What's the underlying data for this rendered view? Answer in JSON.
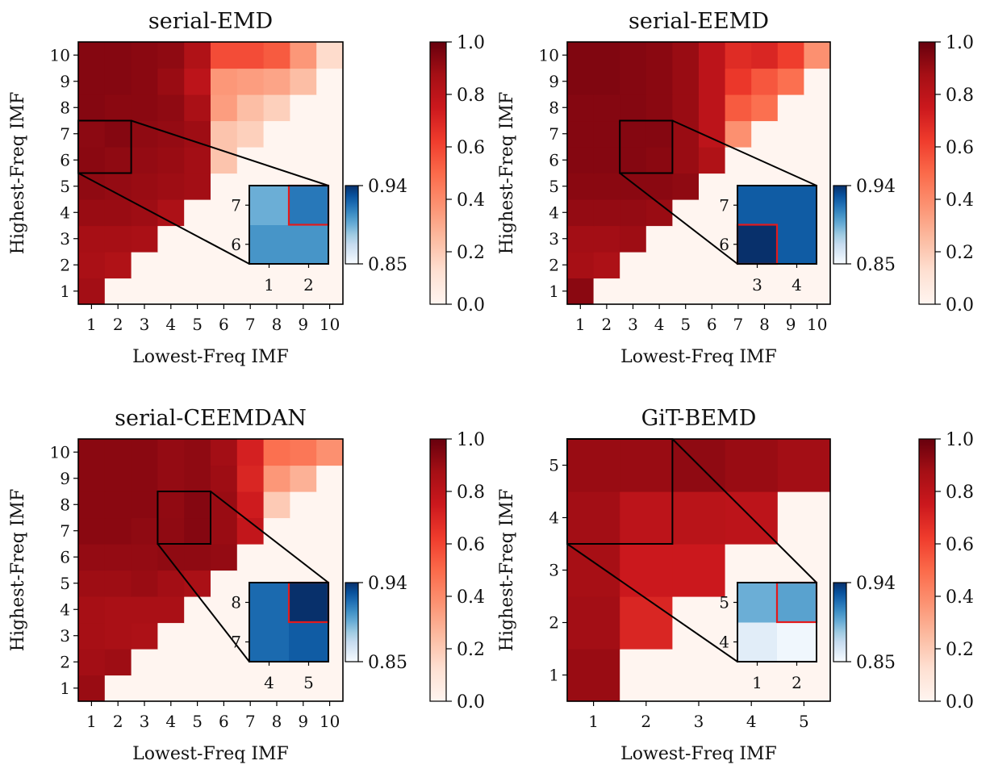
{
  "chart_data": [
    {
      "type": "heatmap",
      "title": "serial-EMD",
      "xlabel": "Lowest-Freq IMF",
      "ylabel": "Highest-Freq IMF",
      "x": [
        1,
        2,
        3,
        4,
        5,
        6,
        7,
        8,
        9,
        10
      ],
      "y": [
        1,
        2,
        3,
        4,
        5,
        6,
        7,
        8,
        9,
        10
      ],
      "values": [
        [
          0.88,
          0,
          0,
          0,
          0,
          0,
          0,
          0,
          0,
          0
        ],
        [
          0.86,
          0.84,
          0,
          0,
          0,
          0,
          0,
          0,
          0,
          0
        ],
        [
          0.87,
          0.87,
          0.86,
          0,
          0,
          0,
          0,
          0,
          0,
          0
        ],
        [
          0.9,
          0.9,
          0.89,
          0.85,
          0,
          0,
          0,
          0,
          0,
          0
        ],
        [
          0.92,
          0.91,
          0.9,
          0.89,
          0.88,
          0,
          0,
          0,
          0,
          0
        ],
        [
          0.93,
          0.92,
          0.91,
          0.9,
          0.88,
          0.22,
          0,
          0,
          0,
          0
        ],
        [
          0.925,
          0.94,
          0.92,
          0.91,
          0.89,
          0.22,
          0.18,
          0,
          0,
          0
        ],
        [
          0.94,
          0.93,
          0.93,
          0.92,
          0.86,
          0.34,
          0.24,
          0.18,
          0,
          0
        ],
        [
          0.94,
          0.94,
          0.93,
          0.9,
          0.8,
          0.36,
          0.34,
          0.32,
          0.24,
          0
        ],
        [
          0.94,
          0.94,
          0.93,
          0.92,
          0.84,
          0.58,
          0.58,
          0.54,
          0.36,
          0.14
        ]
      ],
      "colorbar": {
        "range": [
          0,
          1
        ],
        "ticks": [
          "0.0",
          "0.2",
          "0.4",
          "0.6",
          "0.8",
          "1.0"
        ],
        "colormap": "Reds"
      },
      "inset": {
        "x": [
          1,
          2
        ],
        "y": [
          6,
          7
        ],
        "values": [
          [
            0.905,
            0.905
          ],
          [
            0.895,
            0.915
          ]
        ],
        "highlight": {
          "x": 2,
          "y": 7
        },
        "colorbar": {
          "range": [
            0.85,
            0.94
          ],
          "ticks": [
            "0.85",
            "0.94"
          ],
          "colormap": "Blues"
        }
      }
    },
    {
      "type": "heatmap",
      "title": "serial-EEMD",
      "xlabel": "Lowest-Freq IMF",
      "ylabel": "Highest-Freq IMF",
      "x": [
        1,
        2,
        3,
        4,
        5,
        6,
        7,
        8,
        9,
        10
      ],
      "y": [
        1,
        2,
        3,
        4,
        5,
        6,
        7,
        8,
        9,
        10
      ],
      "values": [
        [
          0.93,
          0,
          0,
          0,
          0,
          0,
          0,
          0,
          0,
          0
        ],
        [
          0.87,
          0.85,
          0,
          0,
          0,
          0,
          0,
          0,
          0,
          0
        ],
        [
          0.88,
          0.88,
          0.89,
          0,
          0,
          0,
          0,
          0,
          0,
          0
        ],
        [
          0.91,
          0.91,
          0.91,
          0.9,
          0,
          0,
          0,
          0,
          0,
          0
        ],
        [
          0.93,
          0.93,
          0.93,
          0.93,
          0.92,
          0,
          0,
          0,
          0,
          0
        ],
        [
          0.94,
          0.94,
          0.94,
          0.93,
          0.9,
          0.84,
          0,
          0,
          0,
          0
        ],
        [
          0.94,
          0.94,
          0.94,
          0.94,
          0.9,
          0.8,
          0.38,
          0,
          0,
          0
        ],
        [
          0.94,
          0.94,
          0.94,
          0.93,
          0.9,
          0.8,
          0.54,
          0.48,
          0,
          0
        ],
        [
          0.95,
          0.95,
          0.94,
          0.93,
          0.9,
          0.8,
          0.64,
          0.55,
          0.48,
          0
        ],
        [
          0.95,
          0.95,
          0.94,
          0.93,
          0.9,
          0.8,
          0.68,
          0.7,
          0.62,
          0.38
        ]
      ],
      "colorbar": {
        "range": [
          0,
          1
        ],
        "ticks": [
          "0.0",
          "0.2",
          "0.4",
          "0.6",
          "0.8",
          "1.0"
        ],
        "colormap": "Reds"
      },
      "inset": {
        "x": [
          3,
          4
        ],
        "y": [
          6,
          7
        ],
        "values": [
          [
            0.94,
            0.925
          ],
          [
            0.925,
            0.925
          ]
        ],
        "highlight": {
          "x": 3,
          "y": 6
        },
        "colorbar": {
          "range": [
            0.85,
            0.94
          ],
          "ticks": [
            "0.85",
            "0.94"
          ],
          "colormap": "Blues"
        }
      }
    },
    {
      "type": "heatmap",
      "title": "serial-CEEMDAN",
      "xlabel": "Lowest-Freq IMF",
      "ylabel": "Highest-Freq IMF",
      "x": [
        1,
        2,
        3,
        4,
        5,
        6,
        7,
        8,
        9,
        10
      ],
      "y": [
        1,
        2,
        3,
        4,
        5,
        6,
        7,
        8,
        9,
        10
      ],
      "values": [
        [
          0.9,
          0,
          0,
          0,
          0,
          0,
          0,
          0,
          0,
          0
        ],
        [
          0.88,
          0.89,
          0,
          0,
          0,
          0,
          0,
          0,
          0,
          0
        ],
        [
          0.87,
          0.86,
          0.85,
          0,
          0,
          0,
          0,
          0,
          0,
          0
        ],
        [
          0.87,
          0.86,
          0.86,
          0.86,
          0,
          0,
          0,
          0,
          0,
          0
        ],
        [
          0.89,
          0.89,
          0.9,
          0.88,
          0.86,
          0,
          0,
          0,
          0,
          0
        ],
        [
          0.91,
          0.91,
          0.91,
          0.92,
          0.92,
          0.91,
          0,
          0,
          0,
          0
        ],
        [
          0.93,
          0.93,
          0.92,
          0.92,
          0.94,
          0.9,
          0.78,
          0,
          0,
          0
        ],
        [
          0.93,
          0.93,
          0.93,
          0.915,
          0.94,
          0.9,
          0.74,
          0.2,
          0,
          0
        ],
        [
          0.93,
          0.93,
          0.93,
          0.91,
          0.92,
          0.89,
          0.7,
          0.36,
          0.28,
          0
        ],
        [
          0.93,
          0.93,
          0.93,
          0.91,
          0.92,
          0.88,
          0.72,
          0.48,
          0.46,
          0.38
        ]
      ],
      "colorbar": {
        "range": [
          0,
          1
        ],
        "ticks": [
          "0.0",
          "0.2",
          "0.4",
          "0.6",
          "0.8",
          "1.0"
        ],
        "colormap": "Reds"
      },
      "inset": {
        "x": [
          4,
          5
        ],
        "y": [
          7,
          8
        ],
        "values": [
          [
            0.92,
            0.925
          ],
          [
            0.92,
            0.94
          ]
        ],
        "highlight": {
          "x": 5,
          "y": 8
        },
        "colorbar": {
          "range": [
            0.85,
            0.94
          ],
          "ticks": [
            "0.85",
            "0.94"
          ],
          "colormap": "Blues"
        }
      }
    },
    {
      "type": "heatmap",
      "title": "GiT-BEMD",
      "xlabel": "Lowest-Freq IMF",
      "ylabel": "Highest-Freq IMF",
      "x": [
        1,
        2,
        3,
        4,
        5
      ],
      "y": [
        1,
        2,
        3,
        4,
        5
      ],
      "values": [
        [
          0.9,
          0,
          0,
          0,
          0
        ],
        [
          0.88,
          0.7,
          0,
          0,
          0
        ],
        [
          0.87,
          0.75,
          0.75,
          0,
          0
        ],
        [
          0.88,
          0.8,
          0.81,
          0.8,
          0
        ],
        [
          0.9,
          0.9,
          0.92,
          0.9,
          0.88
        ]
      ],
      "colorbar": {
        "range": [
          0,
          1
        ],
        "ticks": [
          "0.0",
          "0.2",
          "0.4",
          "0.6",
          "0.8",
          "1.0"
        ],
        "colormap": "Reds"
      },
      "inset": {
        "x": [
          1,
          2
        ],
        "y": [
          4,
          5
        ],
        "values": [
          [
            0.86,
            0.853
          ],
          [
            0.895,
            0.9
          ]
        ],
        "highlight": {
          "x": 2,
          "y": 5
        },
        "colorbar": {
          "range": [
            0.85,
            0.94
          ],
          "ticks": [
            "0.85",
            "0.94"
          ],
          "colormap": "Blues"
        }
      }
    }
  ],
  "colors": {
    "highlight": "#e31a1c",
    "frame": "#000000"
  }
}
